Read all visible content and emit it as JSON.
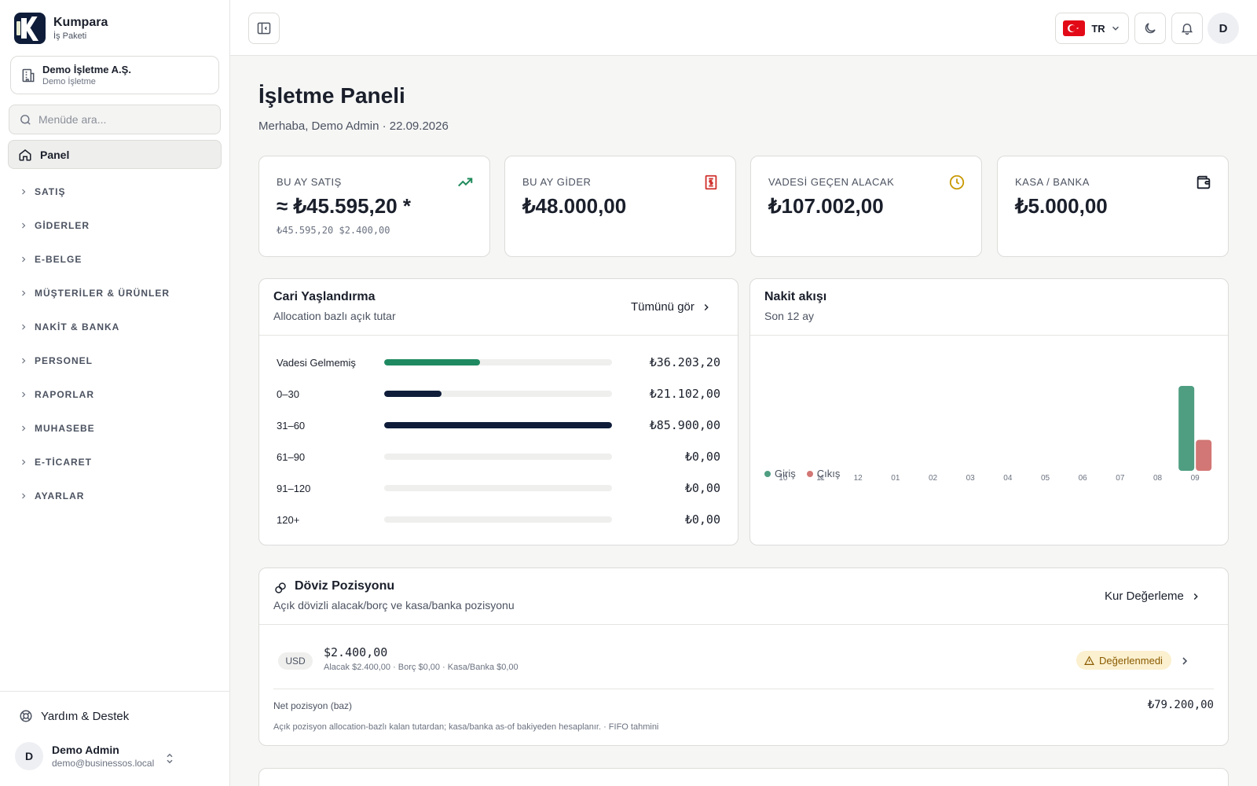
{
  "brand": {
    "name": "Kumpara",
    "subtitle": "İş Paketi"
  },
  "company": {
    "name": "Demo İşletme A.Ş.",
    "subtitle": "Demo İşletme"
  },
  "search": {
    "placeholder": "Menüde ara..."
  },
  "nav": {
    "active": "Panel",
    "items": [
      "SATIŞ",
      "GİDERLER",
      "E-BELGE",
      "MÜŞTERİLER & ÜRÜNLER",
      "NAKİT & BANKA",
      "PERSONEL",
      "RAPORLAR",
      "MUHASEBE",
      "E-TİCARET",
      "AYARLAR"
    ]
  },
  "footer": {
    "help": "Yardım & Destek",
    "user_name": "Demo Admin",
    "user_email": "demo@businessos.local",
    "avatar": "D"
  },
  "topbar": {
    "lang": "TR",
    "avatar": "D",
    "icons": [
      "sidebar-toggle-icon",
      "flag-tr-icon",
      "chevron-down-icon",
      "moon-icon",
      "bell-icon"
    ]
  },
  "page": {
    "title": "İşletme Paneli",
    "subtitle": "Merhaba, Demo Admin · 22.09.2026"
  },
  "kpis": [
    {
      "label": "BU AY SATIŞ",
      "value": "≈ ₺45.595,20 *",
      "sub": "₺45.595,20 $2.400,00",
      "icon": "trending-up-icon",
      "color": "#1f8a5b"
    },
    {
      "label": "BU AY GİDER",
      "value": "₺48.000,00",
      "sub": "",
      "icon": "receipt-icon",
      "color": "#d0312d"
    },
    {
      "label": "VADESİ GEÇEN ALACAK",
      "value": "₺107.002,00",
      "sub": "",
      "icon": "clock-icon",
      "color": "#c99a06"
    },
    {
      "label": "KASA / BANKA",
      "value": "₺5.000,00",
      "sub": "",
      "icon": "wallet-icon",
      "color": "#1a1f2b"
    }
  ],
  "aging": {
    "title": "Cari Yaşlandırma",
    "subtitle": "Allocation bazlı açık tutar",
    "link": "Tümünü gör",
    "rows": [
      {
        "label": "Vadesi Gelmemiş",
        "value": "₺36.203,20",
        "fraction": 0.42,
        "color": "#1f8a62"
      },
      {
        "label": "0–30",
        "value": "₺21.102,00",
        "fraction": 0.25,
        "color": "#0f1d3a"
      },
      {
        "label": "31–60",
        "value": "₺85.900,00",
        "fraction": 1.0,
        "color": "#0f1d3a"
      },
      {
        "label": "61–90",
        "value": "₺0,00",
        "fraction": 0,
        "color": "#0f1d3a"
      },
      {
        "label": "91–120",
        "value": "₺0,00",
        "fraction": 0,
        "color": "#0f1d3a"
      },
      {
        "label": "120+",
        "value": "₺0,00",
        "fraction": 0,
        "color": "#0f1d3a"
      }
    ]
  },
  "cashflow": {
    "title": "Nakit akışı",
    "subtitle": "Son 12 ay"
  },
  "chart_data": {
    "type": "bar",
    "categories": [
      "10",
      "11",
      "12",
      "01",
      "02",
      "03",
      "04",
      "05",
      "06",
      "07",
      "08",
      "09"
    ],
    "series": [
      {
        "name": "Giriş",
        "color": "#4f9e82",
        "values": [
          0,
          0,
          0,
          0,
          0,
          0,
          0,
          0,
          0,
          0,
          0,
          107002
        ]
      },
      {
        "name": "Çıkış",
        "color": "#d27775",
        "values": [
          0,
          0,
          0,
          0,
          0,
          0,
          0,
          0,
          0,
          0,
          0,
          39000
        ]
      }
    ],
    "legend": "bottom-left",
    "grid": false
  },
  "fx": {
    "title": "Döviz Pozisyonu",
    "subtitle": "Açık dövizli alacak/borç ve kasa/banka pozisyonu",
    "link": "Kur Değerleme",
    "currency": "USD",
    "amount": "$2.400,00",
    "detail": "Alacak $2.400,00 · Borç $0,00 · Kasa/Banka $0,00",
    "status": "Değerlenmedi",
    "net_label": "Net pozisyon (baz)",
    "net_value": "₺79.200,00",
    "note": "Açık pozisyon allocation-bazlı kalan tutardan; kasa/banka as-of bakiyeden hesaplanır. · FIFO tahmini"
  }
}
